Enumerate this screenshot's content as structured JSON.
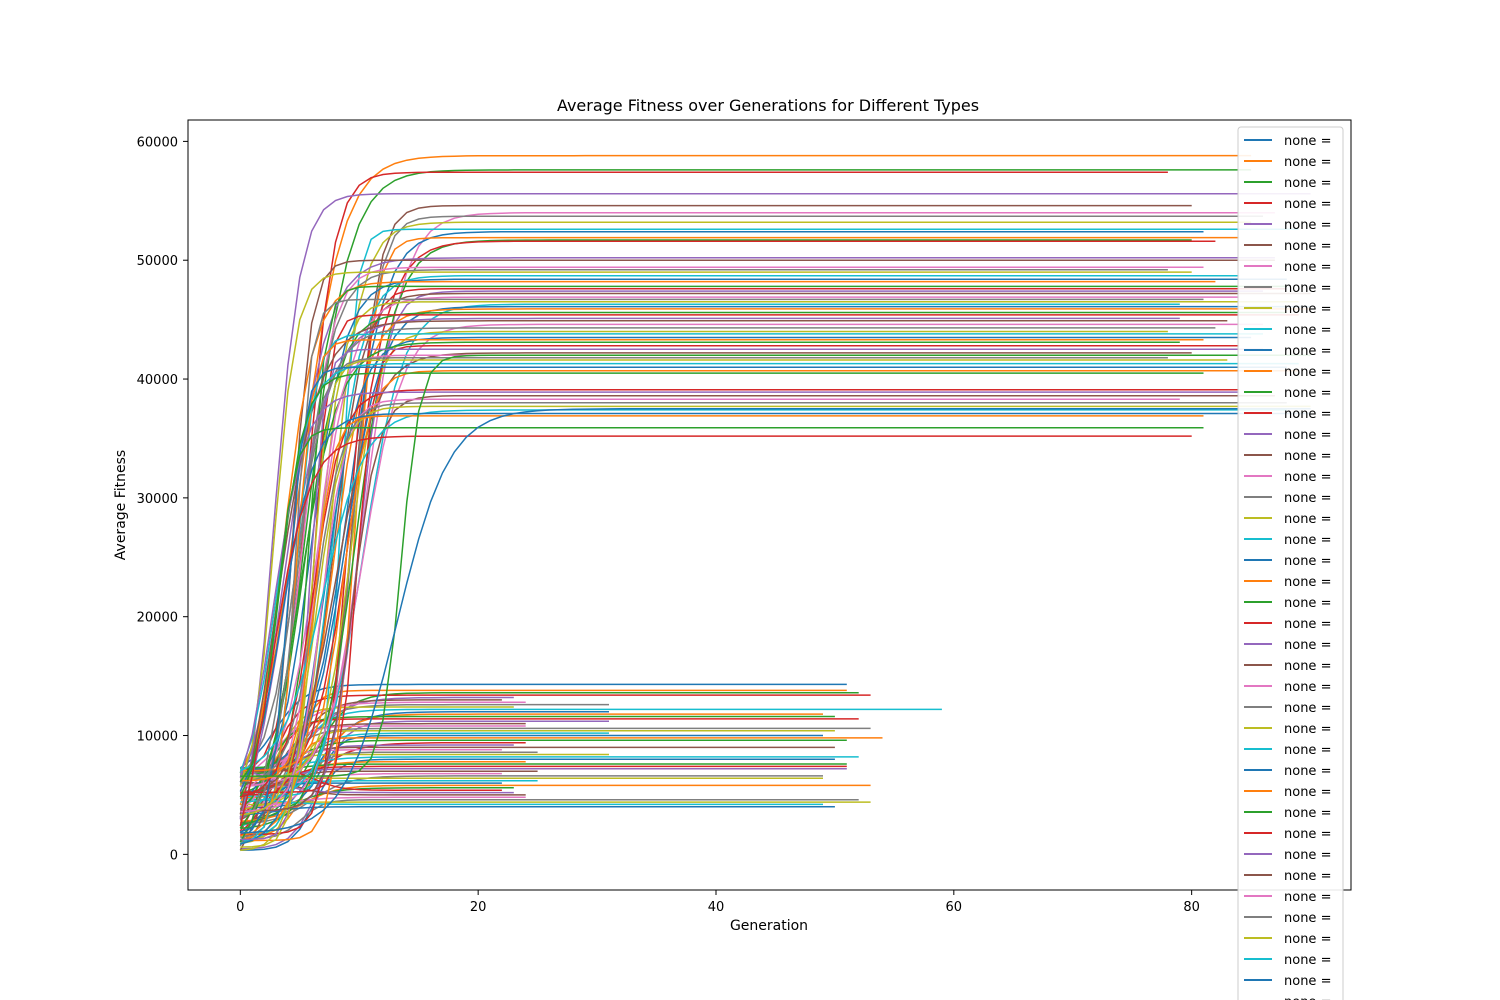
{
  "chart_data": {
    "type": "line",
    "title": "Average Fitness over Generations for Different Types",
    "xlabel": "Generation",
    "ylabel": "Average Fitness",
    "xlim": [
      -4.4,
      93.4
    ],
    "ylim": [
      -3000,
      61800
    ],
    "xticks": [
      0,
      20,
      40,
      60,
      80
    ],
    "yticks": [
      0,
      10000,
      20000,
      30000,
      40000,
      50000,
      60000
    ],
    "grid": false,
    "legend_position": "right (overflowing bottom edge)",
    "legend_label": "none =",
    "legend_visible_count": 42,
    "palette": [
      "#1f77b4",
      "#ff7f0e",
      "#2ca02c",
      "#d62728",
      "#9467bd",
      "#8c564b",
      "#e377c2",
      "#7f7f7f",
      "#bcbd22",
      "#17becf"
    ],
    "series_count": 200,
    "series_note": "",
    "high_group_plateaus": [
      58800,
      57600,
      57400,
      55600,
      54600,
      54000,
      53700,
      53200,
      52600,
      52400,
      51900,
      51700,
      51600,
      50200,
      50000,
      49400,
      49200,
      49000,
      48700,
      48400,
      48200,
      47800,
      47600,
      47400,
      47200,
      46900,
      46700,
      46500,
      46300,
      46100,
      45900,
      45600,
      45400,
      45100,
      44900,
      44600,
      44300,
      44000,
      43800,
      43500,
      43300,
      43100,
      42800,
      42500,
      42200,
      42000,
      41800,
      41600,
      41300,
      41000,
      40700,
      40500,
      39100,
      38900,
      38600,
      38300,
      38000,
      37700,
      37400,
      37100,
      36900,
      35900,
      35200
    ],
    "high_group_end_generations": [
      78,
      79,
      80,
      81,
      82,
      83,
      84,
      85,
      86,
      87,
      88,
      89,
      90
    ],
    "low_group_plateaus": [
      14300,
      13800,
      13600,
      13400,
      13200,
      13000,
      12800,
      12600,
      12400,
      12200,
      12000,
      11800,
      11600,
      11400,
      11200,
      11000,
      10800,
      10600,
      10400,
      10200,
      10000,
      9800,
      9600,
      9400,
      9200,
      9000,
      8800,
      8600,
      8400,
      8200,
      8000,
      7800,
      7600,
      7400,
      7200,
      7000,
      6800,
      6600,
      6400,
      6200,
      6000,
      5800,
      5600,
      5400,
      5200,
      5000,
      4800,
      4600,
      4400,
      4200,
      4000
    ],
    "low_group_end_generations": [
      21,
      22,
      23,
      24,
      25,
      31,
      49,
      50,
      51,
      52,
      53,
      54,
      59
    ]
  }
}
